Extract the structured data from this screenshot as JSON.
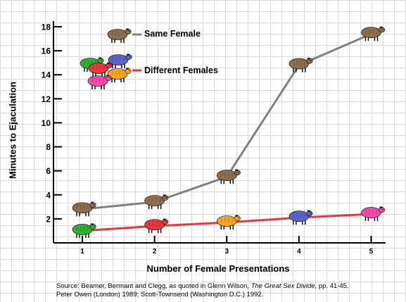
{
  "chart_data": {
    "type": "line",
    "xlabel": "Number of Female Presentations",
    "ylabel": "Minutes to Ejaculation",
    "x": [
      1,
      2,
      3,
      4,
      5
    ],
    "xlim": [
      0.6,
      5.2
    ],
    "ylim": [
      0,
      18
    ],
    "yticks": [
      2,
      4,
      6,
      8,
      10,
      12,
      14,
      16,
      18
    ],
    "grid": true,
    "legend_position": "top-left",
    "series": [
      {
        "name": "Same Female",
        "color": "#808080",
        "values": [
          2.8,
          3.4,
          5.5,
          14.8,
          17.4
        ],
        "marker": "sheep-icon",
        "marker_colors": [
          "#8b6e4e",
          "#8b6e4e",
          "#8b6e4e",
          "#8b6e4e",
          "#8b6e4e"
        ]
      },
      {
        "name": "Different Females",
        "color": "#e8383d",
        "values": [
          1.0,
          1.4,
          1.7,
          2.1,
          2.4
        ],
        "marker": "sheep-icon",
        "marker_colors": [
          "#2eb135",
          "#e8383d",
          "#f5a623",
          "#5b63c8",
          "#f04ca8"
        ]
      }
    ],
    "legend_sheep_colors": [
      "#2eb135",
      "#5b63c8",
      "#e8383d",
      "#f04ca8",
      "#f5a623"
    ],
    "source_line1_prefix": "Source: Beamer, Bermant and Clegg, as quoted in Glenn Wilson, ",
    "source_line1_title": "The Great Sex Divide",
    "source_line1_suffix": ", pp. 41-45.",
    "source_line2": "Peter Owen (London) 1989; Scott-Townsend (Washington D.C.) 1992."
  }
}
